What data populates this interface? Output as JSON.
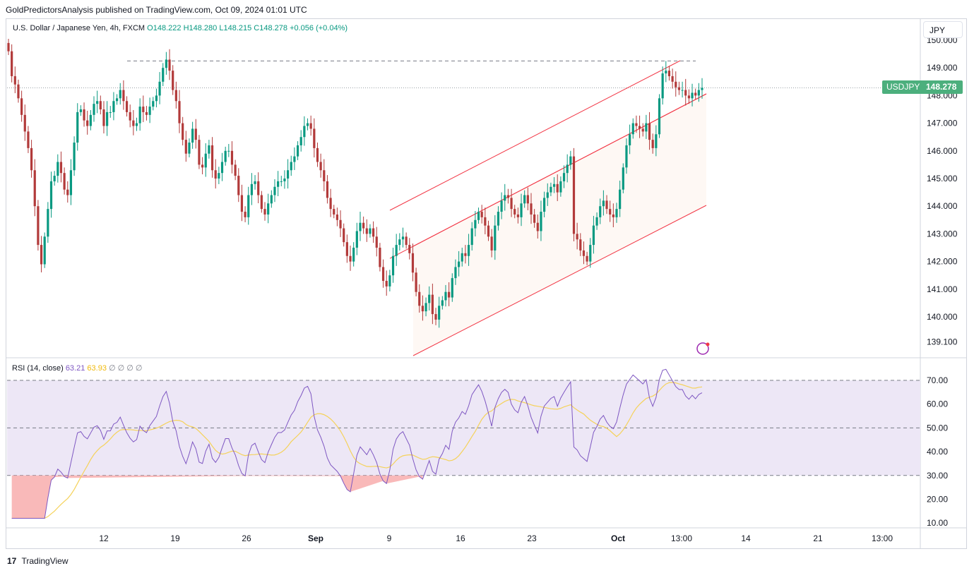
{
  "header": {
    "publisher_line": "GoldPredictorsAnalysis published on TradingView.com, Oct 09, 2024 01:01 UTC"
  },
  "legend": {
    "symbol": "U.S. Dollar / Japanese Yen, 4h, FXCM",
    "open": "O148.222",
    "high": "H148.280",
    "low": "L148.215",
    "close": "C148.278",
    "change": "+0.056 (+0.04%)"
  },
  "rsi_legend": {
    "label": "RSI (14, close)",
    "rsi": "63.21",
    "ma": "63.93",
    "extras": "∅ ∅ ∅ ∅"
  },
  "currency_button": "JPY",
  "price_badge": {
    "symbol": "USDJPY",
    "price": "148.278"
  },
  "footer": {
    "logo": "17",
    "brand": "TradingView"
  },
  "colors": {
    "up": "#089981",
    "down": "#b23a3a",
    "channel": "#f23645",
    "rsi": "#7e57c2",
    "rsi_ma": "#f5d25a",
    "rsi_band": "#ede7f6",
    "badge": "#4caf7d"
  },
  "chart_data": [
    {
      "type": "candlestick",
      "title": "U.S. Dollar / Japanese Yen, 4h, FXCM",
      "y_ticks": [
        "150.000",
        "149.000",
        "148.000",
        "147.000",
        "146.000",
        "145.000",
        "144.000",
        "143.000",
        "142.000",
        "141.000",
        "140.000",
        "139.100"
      ],
      "ylim": [
        138.9,
        150.3
      ],
      "x_ticks": [
        "12",
        "19",
        "26",
        "Sep",
        "9",
        "16",
        "23",
        "Oct",
        "13:00",
        "14",
        "21",
        "13:00"
      ],
      "last_price": 148.278,
      "resistance_level": 149.25,
      "series": [
        {
          "name": "USDJPY",
          "close": [
            149.6,
            148.7,
            148.4,
            147.9,
            147.3,
            146.7,
            146.1,
            145.3,
            144.0,
            142.6,
            141.9,
            142.9,
            143.9,
            144.9,
            145.1,
            145.6,
            145.2,
            144.6,
            144.4,
            145.3,
            146.3,
            147.4,
            147.5,
            147.1,
            146.9,
            147.3,
            147.7,
            147.8,
            147.5,
            146.9,
            147.4,
            147.4,
            147.8,
            147.9,
            148.2,
            147.8,
            147.4,
            147.1,
            146.9,
            147.0,
            147.6,
            147.4,
            147.3,
            147.6,
            147.8,
            148.0,
            148.5,
            149.0,
            149.3,
            148.9,
            148.2,
            147.8,
            147.0,
            146.4,
            145.9,
            146.3,
            146.8,
            146.4,
            145.5,
            145.4,
            145.9,
            146.2,
            145.3,
            145.0,
            145.2,
            145.6,
            146.0,
            146.0,
            145.5,
            145.1,
            144.4,
            143.8,
            143.6,
            144.4,
            144.8,
            144.9,
            144.4,
            143.9,
            143.7,
            144.1,
            144.4,
            144.7,
            144.9,
            144.9,
            145.0,
            145.3,
            145.6,
            145.8,
            146.2,
            146.5,
            146.9,
            147.0,
            146.8,
            146.1,
            145.6,
            145.3,
            144.9,
            144.3,
            143.9,
            143.7,
            143.5,
            143.2,
            142.7,
            142.2,
            142.0,
            142.5,
            143.1,
            143.4,
            143.2,
            143.0,
            143.2,
            142.9,
            142.5,
            141.8,
            141.3,
            141.1,
            141.5,
            142.2,
            142.6,
            142.8,
            142.9,
            142.6,
            142.3,
            141.6,
            140.9,
            140.4,
            140.2,
            140.5,
            140.8,
            140.1,
            139.9,
            140.4,
            140.6,
            140.9,
            140.7,
            141.4,
            141.8,
            142.0,
            142.3,
            142.2,
            142.6,
            143.2,
            143.5,
            143.8,
            143.6,
            143.3,
            142.9,
            142.4,
            143.3,
            143.8,
            144.2,
            144.4,
            144.3,
            143.9,
            143.7,
            143.6,
            144.1,
            144.4,
            144.1,
            143.7,
            143.4,
            143.1,
            143.8,
            144.3,
            144.5,
            144.7,
            144.8,
            144.5,
            144.9,
            145.2,
            145.5,
            145.8,
            143.0,
            142.8,
            142.4,
            142.2,
            142.0,
            142.6,
            143.3,
            143.6,
            144.0,
            144.2,
            143.9,
            143.7,
            143.6,
            143.9,
            144.6,
            145.4,
            146.2,
            146.6,
            147.0,
            146.9,
            146.8,
            146.7,
            147.0,
            146.4,
            146.1,
            146.6,
            147.9,
            148.8,
            148.9,
            148.7,
            148.5,
            148.3,
            148.2,
            148.2,
            148.0,
            147.9,
            148.1,
            148.0,
            148.2,
            148.28
          ]
        }
      ]
    },
    {
      "type": "line",
      "title": "RSI (14, close)",
      "y_ticks": [
        "70.00",
        "60.00",
        "50.00",
        "40.00",
        "30.00",
        "20.00",
        "10.00"
      ],
      "ylim": [
        8,
        77
      ],
      "bands": {
        "upper": 70,
        "middle": 50,
        "lower": 30
      },
      "series": [
        {
          "name": "RSI",
          "last": 63.21
        },
        {
          "name": "RSI-based MA",
          "last": 63.93
        }
      ]
    }
  ]
}
